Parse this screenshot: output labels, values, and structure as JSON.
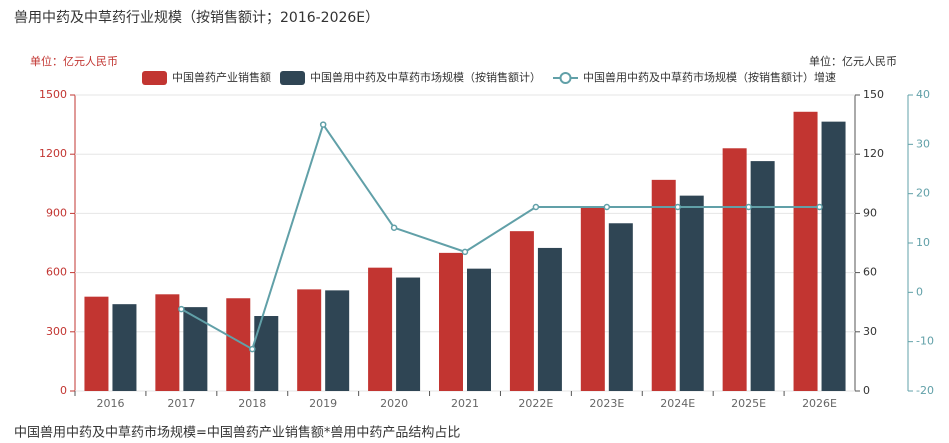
{
  "chart_data": {
    "type": "bar",
    "title": "兽用中药及中草药行业规模（按销售额计；2016-2026E）",
    "y_unit_label": "单位：亿元人民币",
    "y2_unit_label": "单位：亿元人民币",
    "note": "中国兽用中药及中草药市场规模=中国兽药产业销售额*兽用中药产品结构占比",
    "categories": [
      "2016",
      "2017",
      "2018",
      "2019",
      "2020",
      "2021",
      "2022E",
      "2023E",
      "2024E",
      "2025E",
      "2026E"
    ],
    "series": [
      {
        "name": "中国兽药产业销售额",
        "color": "#c23531",
        "type": "bar",
        "axis": "y",
        "values": [
          478,
          490,
          470,
          515,
          625,
          700,
          810,
          935,
          1070,
          1230,
          1415
        ]
      },
      {
        "name": "中国兽用中药及中草药市场规模（按销售额计）",
        "color": "#2f4554",
        "type": "bar",
        "axis": "y2",
        "values": [
          44,
          42.5,
          38,
          51,
          57.5,
          62,
          72.5,
          85,
          99,
          116.5,
          136.5
        ]
      },
      {
        "name": "中国兽用中药及中草药市场规模（按销售额计）增速",
        "color": "#61a0a8",
        "type": "line",
        "axis": "y3",
        "values": [
          null,
          -3.4,
          -11.5,
          34,
          13.1,
          8.2,
          17.3,
          17.3,
          17.3,
          17.3,
          17.3
        ]
      }
    ],
    "ylim": [
      0,
      1500
    ],
    "yticks": [
      0,
      300,
      600,
      900,
      1200,
      1500
    ],
    "y2lim": [
      0,
      150
    ],
    "y2ticks": [
      0,
      30,
      60,
      90,
      120,
      150
    ],
    "y3lim": [
      -20,
      40
    ],
    "y3ticks": [
      -20,
      -10,
      0,
      10,
      20,
      30,
      40
    ],
    "grid": true
  }
}
